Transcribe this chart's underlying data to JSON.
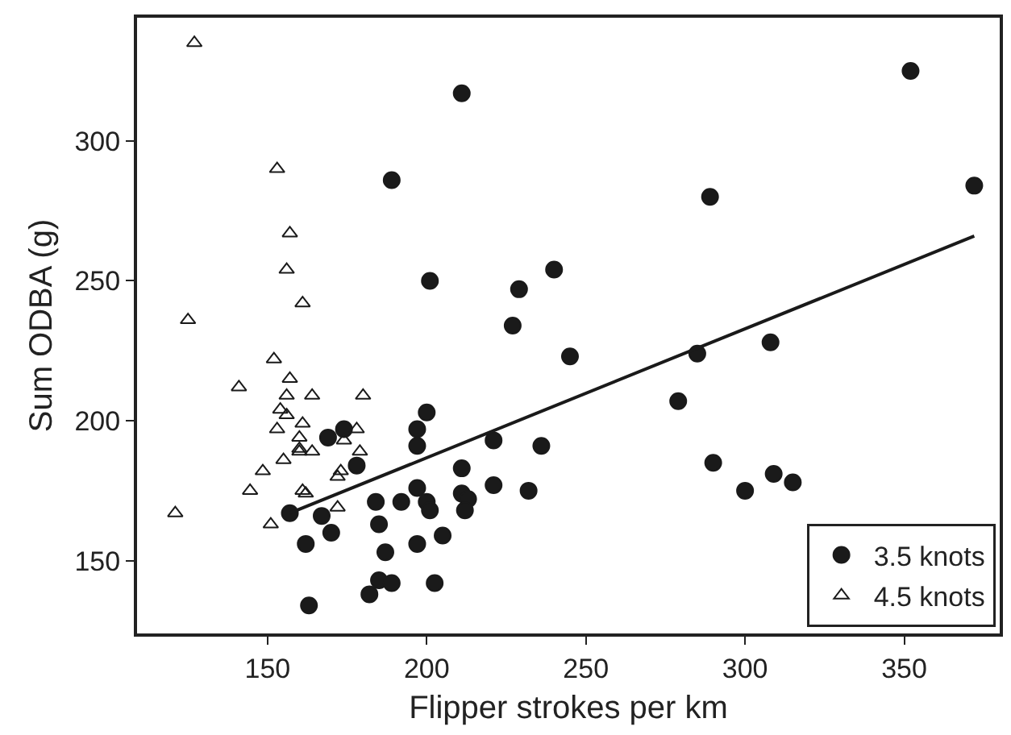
{
  "chart_data": {
    "type": "scatter",
    "xlabel": "Flipper strokes per km",
    "ylabel": "Sum ODBA (g)",
    "xlim": [
      109,
      380
    ],
    "ylim": [
      124,
      344
    ],
    "xticks": [
      150,
      200,
      250,
      300,
      350
    ],
    "yticks": [
      150,
      200,
      250,
      300
    ],
    "legend": "bottom right",
    "series": [
      {
        "name": "3.5 knots",
        "color": "#1a1a1a",
        "marker": "circle",
        "x": [
          189,
          201,
          200,
          197,
          197,
          169,
          174,
          178,
          157,
          167,
          170,
          162,
          184,
          192,
          197,
          200,
          201,
          185,
          187,
          197,
          185,
          189,
          182,
          163,
          202.5,
          211,
          240,
          229,
          227,
          245,
          285,
          289,
          279,
          290,
          221,
          236,
          211,
          221,
          232,
          211,
          213,
          212,
          205,
          352,
          372,
          308,
          300,
          309,
          315
        ],
        "values": [
          286,
          250,
          203,
          197,
          191,
          194,
          197,
          184,
          167,
          166,
          160,
          156,
          171,
          171,
          176,
          171,
          168,
          163,
          153,
          156,
          143,
          142,
          138,
          134,
          142,
          317,
          254,
          247,
          234,
          223,
          224,
          280,
          207,
          185,
          193,
          191,
          183,
          177,
          175,
          174,
          172,
          168,
          159,
          325,
          284,
          228,
          175,
          181,
          178
        ]
      },
      {
        "name": "4.5 knots",
        "color": "#1a1a1a",
        "marker": "triangle",
        "x": [
          127,
          153,
          157,
          156,
          125,
          161,
          152,
          141,
          157,
          156,
          164,
          180,
          154,
          156,
          161,
          153,
          178,
          174,
          160,
          160,
          160,
          164,
          155,
          179,
          148.5,
          173,
          172,
          144.5,
          161,
          162,
          172,
          121,
          151
        ],
        "values": [
          335,
          290,
          267,
          254,
          236,
          242,
          222,
          212,
          215,
          209,
          209,
          209,
          204,
          202,
          199,
          197,
          197,
          193,
          194,
          190,
          189,
          189,
          186,
          189,
          182,
          182,
          180,
          175,
          175,
          174,
          169,
          167,
          163
        ]
      },
      {
        "type": "line",
        "color": "#1a1a1a",
        "x": [
          157,
          372
        ],
        "values": [
          167,
          266
        ]
      }
    ]
  }
}
